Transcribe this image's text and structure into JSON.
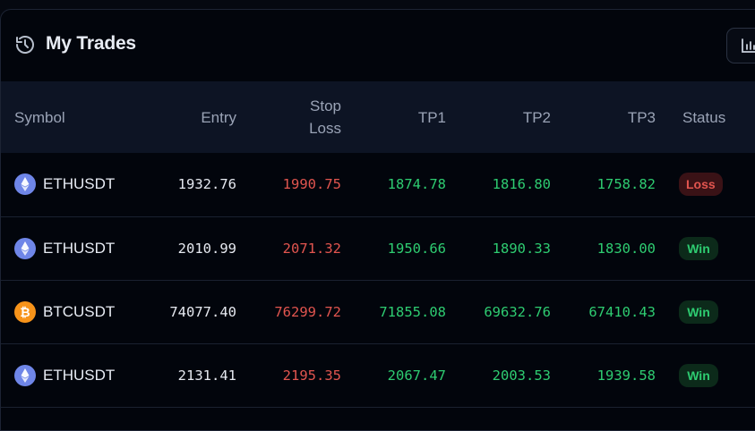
{
  "header": {
    "title": "My Trades"
  },
  "columns": {
    "symbol": "Symbol",
    "entry": "Entry",
    "stop_loss_1": "Stop",
    "stop_loss_2": "Loss",
    "tp1": "TP1",
    "tp2": "TP2",
    "tp3": "TP3",
    "status": "Status"
  },
  "rows": [
    {
      "symbol": "ETHUSDT",
      "coin": "ethereum-icon",
      "entry": "1932.76",
      "stop_loss": "1990.75",
      "tp1": "1874.78",
      "tp2": "1816.80",
      "tp3": "1758.82",
      "status": "Loss"
    },
    {
      "symbol": "ETHUSDT",
      "coin": "ethereum-icon",
      "entry": "2010.99",
      "stop_loss": "2071.32",
      "tp1": "1950.66",
      "tp2": "1890.33",
      "tp3": "1830.00",
      "status": "Win"
    },
    {
      "symbol": "BTCUSDT",
      "coin": "bitcoin-icon",
      "entry": "74077.40",
      "stop_loss": "76299.72",
      "tp1": "71855.08",
      "tp2": "69632.76",
      "tp3": "67410.43",
      "status": "Win"
    },
    {
      "symbol": "ETHUSDT",
      "coin": "ethereum-icon",
      "entry": "2131.41",
      "stop_loss": "2195.35",
      "tp1": "2067.47",
      "tp2": "2003.53",
      "tp3": "1939.58",
      "status": "Win"
    }
  ],
  "colors": {
    "win": "#2ecc71",
    "loss": "#e2554f",
    "ethereum": "#6f86e8",
    "bitcoin": "#f7931a"
  }
}
